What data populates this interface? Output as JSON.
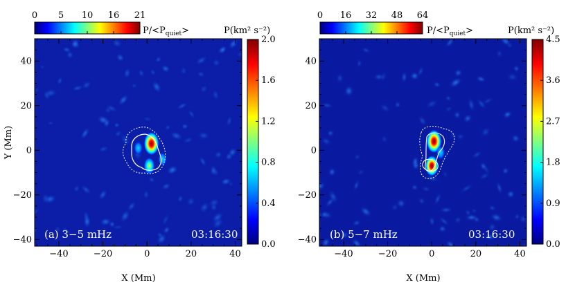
{
  "chart_data": [
    {
      "type": "heatmap",
      "panel_label": "(a) 3−5 mHz",
      "time": "03:16:30",
      "xlabel": "X (Mm)",
      "ylabel": "Y (Mm)",
      "xlim": [
        -51,
        43
      ],
      "ylim": [
        -43,
        50
      ],
      "x_ticks": [
        "−40",
        "−20",
        "0",
        "20",
        "40"
      ],
      "y_ticks": [
        "−40",
        "−20",
        "0",
        "20",
        "40"
      ],
      "x_tick_values": [
        -40,
        -20,
        0,
        20,
        40
      ],
      "y_tick_values": [
        -40,
        -20,
        0,
        20,
        40
      ],
      "top_colorbar": {
        "ticks": [
          "0",
          "5",
          "10",
          "16",
          "21"
        ],
        "label": "P/<P",
        "label_sub": "quiet",
        "label_end": ">"
      },
      "right_colorbar": {
        "label": "P(km² s⁻²)",
        "ticks": [
          "0.0",
          "0.4",
          "0.8",
          "1.2",
          "1.6",
          "2.0"
        ],
        "range": [
          0,
          2.0
        ]
      },
      "peaks": [
        {
          "x": 2,
          "y": 3,
          "value": 2.0
        },
        {
          "x": 1,
          "y": -7,
          "value": 1.0
        },
        {
          "x": 7,
          "y": -4,
          "value": 0.6
        },
        {
          "x": -4,
          "y": 1,
          "value": 0.5
        }
      ]
    },
    {
      "type": "heatmap",
      "panel_label": "(b) 5−7 mHz",
      "time": "03:16:30",
      "xlabel": "X (Mm)",
      "xlim": [
        -51,
        43
      ],
      "ylim": [
        -43,
        50
      ],
      "x_ticks": [
        "−40",
        "−20",
        "0",
        "20",
        "40"
      ],
      "y_ticks": [
        "−40",
        "−20",
        "0",
        "20",
        "40"
      ],
      "x_tick_values": [
        -40,
        -20,
        0,
        20,
        40
      ],
      "y_tick_values": [
        -40,
        -20,
        0,
        20,
        40
      ],
      "top_colorbar": {
        "ticks": [
          "0",
          "16",
          "32",
          "48",
          "64"
        ],
        "label": "P/<P",
        "label_sub": "quiet",
        "label_end": ">"
      },
      "right_colorbar": {
        "label": "P(km² s⁻²)",
        "ticks": [
          "0.0",
          "0.9",
          "1.8",
          "2.7",
          "3.6",
          "4.5"
        ],
        "range": [
          0,
          4.5
        ]
      },
      "peaks": [
        {
          "x": 1,
          "y": 4,
          "value": 4.5
        },
        {
          "x": 0,
          "y": -7,
          "value": 3.5
        },
        {
          "x": 4,
          "y": -1,
          "value": 1.2
        }
      ]
    }
  ],
  "colors": {
    "background": "#00008f",
    "colormap": [
      "#00007f",
      "#0000ff",
      "#00ffff",
      "#ffff00",
      "#ff0000",
      "#7f0000"
    ]
  }
}
